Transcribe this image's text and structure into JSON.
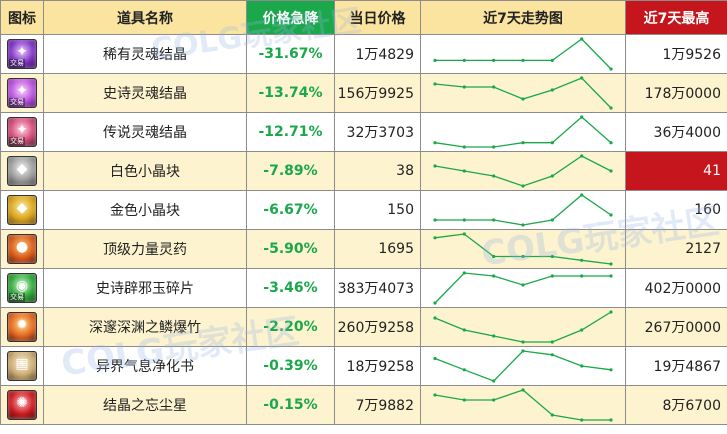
{
  "header": {
    "icon": "图标",
    "name": "道具名称",
    "change": "价格急降",
    "price": "当日价格",
    "trend": "近7天走势图",
    "max": "近7天最高"
  },
  "items": [
    {
      "icon": "soul-crystal-rare-icon",
      "name": "稀有灵魂结晶",
      "change": "-31.67%",
      "price": "1万4829",
      "max": "1万9526",
      "trend": [
        10,
        10,
        10,
        10,
        10,
        15,
        8
      ]
    },
    {
      "icon": "soul-crystal-epic-icon",
      "name": "史诗灵魂结晶",
      "change": "-13.74%",
      "price": "156万9925",
      "max": "178万0000",
      "trend": [
        13,
        12,
        12,
        8,
        11,
        15,
        5
      ]
    },
    {
      "icon": "soul-crystal-legend-icon",
      "name": "传说灵魂结晶",
      "change": "-12.71%",
      "price": "32万3703",
      "max": "36万4000",
      "trend": [
        10,
        9,
        9,
        10,
        10,
        16,
        10
      ]
    },
    {
      "icon": "white-crystal-icon",
      "name": "白色小晶块",
      "change": "-7.89%",
      "price": "38",
      "max": "41",
      "trend": [
        11,
        10,
        9,
        7,
        9,
        13,
        10
      ]
    },
    {
      "icon": "gold-crystal-icon",
      "name": "金色小晶块",
      "change": "-6.67%",
      "price": "150",
      "max": "160",
      "trend": [
        10,
        10,
        10,
        9,
        10,
        15,
        11
      ]
    },
    {
      "icon": "strength-potion-icon",
      "name": "顶级力量灵药",
      "change": "-5.90%",
      "price": "1695",
      "max": "2127",
      "trend": [
        14,
        15,
        9,
        9,
        9,
        8,
        7
      ]
    },
    {
      "icon": "jade-fragment-icon",
      "name": "史诗辟邪玉碎片",
      "change": "-3.46%",
      "price": "383万4073",
      "max": "402万0000",
      "trend": [
        5,
        15,
        14,
        11,
        14,
        14,
        14
      ]
    },
    {
      "icon": "firecracker-icon",
      "name": "深邃深渊之鳞爆竹",
      "change": "-2.20%",
      "price": "260万9258",
      "max": "267万0000",
      "trend": [
        14,
        12,
        11,
        10,
        10,
        12,
        15
      ]
    },
    {
      "icon": "purify-book-icon",
      "name": "异界气息净化书",
      "change": "-0.39%",
      "price": "18万9258",
      "max": "19万4867",
      "trend": [
        13,
        10,
        7,
        15,
        14,
        11,
        10
      ]
    },
    {
      "icon": "crystal-dust-icon",
      "name": "结晶之忘尘星",
      "change": "-0.15%",
      "price": "7万9882",
      "max": "8万6700",
      "trend": [
        12,
        11,
        11,
        13,
        8,
        7,
        7
      ]
    }
  ],
  "watermark": "COLG玩家社区",
  "icon_tag": "交易",
  "colors": {
    "header_bg": "#fbe49f",
    "green": "#1aa84a",
    "red": "#c4161c",
    "row_alt": "#fdf3cf",
    "line": "#1aa84a"
  }
}
